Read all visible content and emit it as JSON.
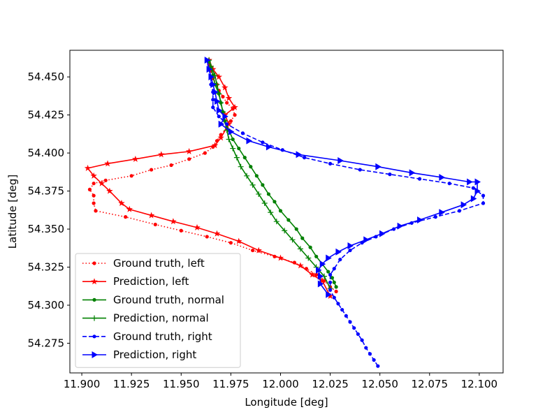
{
  "chart_data": {
    "type": "line",
    "xlabel": "Longitude [deg]",
    "ylabel": "Latitude [deg]",
    "xlim": [
      11.894,
      12.112
    ],
    "ylim": [
      54.2555,
      54.4675
    ],
    "xticks": [
      11.9,
      11.925,
      11.95,
      11.975,
      12.0,
      12.025,
      12.05,
      12.075,
      12.1
    ],
    "xtick_labels": [
      "11.900",
      "11.925",
      "11.950",
      "11.975",
      "12.000",
      "12.025",
      "12.050",
      "12.075",
      "12.100"
    ],
    "yticks": [
      54.275,
      54.3,
      54.325,
      54.35,
      54.375,
      54.4,
      54.425,
      54.45
    ],
    "ytick_labels": [
      "54.275",
      "54.300",
      "54.325",
      "54.350",
      "54.375",
      "54.400",
      "54.425",
      "54.450"
    ],
    "grid": false,
    "legend_position": "lower-left",
    "series": [
      {
        "name": "Ground truth, left",
        "color": "#ff0000",
        "style": "dotted",
        "marker": "dot",
        "points": [
          [
            12.028,
            54.309
          ],
          [
            12.025,
            54.312
          ],
          [
            12.022,
            54.316
          ],
          [
            12.018,
            54.32
          ],
          [
            12.013,
            54.324
          ],
          [
            12.007,
            54.328
          ],
          [
            11.997,
            54.332
          ],
          [
            11.986,
            54.336
          ],
          [
            11.975,
            54.341
          ],
          [
            11.963,
            54.345
          ],
          [
            11.95,
            54.349
          ],
          [
            11.937,
            54.353
          ],
          [
            11.922,
            54.358
          ],
          [
            11.907,
            54.362
          ],
          [
            11.906,
            54.367
          ],
          [
            11.906,
            54.372
          ],
          [
            11.904,
            54.376
          ],
          [
            11.906,
            54.38
          ],
          [
            11.912,
            54.382
          ],
          [
            11.925,
            54.385
          ],
          [
            11.935,
            54.389
          ],
          [
            11.945,
            54.392
          ],
          [
            11.954,
            54.396
          ],
          [
            11.962,
            54.4
          ],
          [
            11.966,
            54.404
          ],
          [
            11.968,
            54.408
          ],
          [
            11.97,
            54.412
          ],
          [
            11.973,
            54.417
          ],
          [
            11.975,
            54.421
          ],
          [
            11.977,
            54.425
          ],
          [
            11.976,
            54.429
          ],
          [
            11.973,
            54.433
          ],
          [
            11.971,
            54.437
          ],
          [
            11.969,
            54.441
          ],
          [
            11.968,
            54.445
          ],
          [
            11.966,
            54.449
          ],
          [
            11.965,
            54.454
          ],
          [
            11.964,
            54.458
          ],
          [
            11.963,
            54.461
          ]
        ]
      },
      {
        "name": "Prediction, left",
        "color": "#ff0000",
        "style": "solid",
        "marker": "star",
        "points": [
          [
            12.025,
            54.306
          ],
          [
            12.021,
            54.316
          ],
          [
            12.016,
            54.32
          ],
          [
            12.01,
            54.326
          ],
          [
            12.0,
            54.331
          ],
          [
            11.989,
            54.336
          ],
          [
            11.979,
            54.342
          ],
          [
            11.968,
            54.347
          ],
          [
            11.958,
            54.351
          ],
          [
            11.946,
            54.355
          ],
          [
            11.935,
            54.359
          ],
          [
            11.924,
            54.363
          ],
          [
            11.92,
            54.367
          ],
          [
            11.914,
            54.375
          ],
          [
            11.91,
            54.38
          ],
          [
            11.906,
            54.385
          ],
          [
            11.903,
            54.39
          ],
          [
            11.913,
            54.393
          ],
          [
            11.927,
            54.396
          ],
          [
            11.94,
            54.399
          ],
          [
            11.954,
            54.401
          ],
          [
            11.967,
            54.405
          ],
          [
            11.97,
            54.41
          ],
          [
            11.974,
            54.419
          ],
          [
            11.972,
            54.425
          ],
          [
            11.977,
            54.43
          ],
          [
            11.974,
            54.436
          ],
          [
            11.972,
            54.443
          ],
          [
            11.969,
            54.45
          ],
          [
            11.966,
            54.455
          ],
          [
            11.964,
            54.461
          ]
        ]
      },
      {
        "name": "Ground truth, normal",
        "color": "#008000",
        "style": "solid",
        "marker": "dot",
        "points": [
          [
            12.028,
            54.312
          ],
          [
            12.027,
            54.315
          ],
          [
            12.026,
            54.318
          ],
          [
            12.024,
            54.322
          ],
          [
            12.021,
            54.327
          ],
          [
            12.018,
            54.332
          ],
          [
            12.015,
            54.338
          ],
          [
            12.011,
            54.344
          ],
          [
            12.008,
            54.35
          ],
          [
            12.004,
            54.356
          ],
          [
            12.0,
            54.362
          ],
          [
            11.997,
            54.368
          ],
          [
            11.994,
            54.373
          ],
          [
            11.991,
            54.379
          ],
          [
            11.988,
            54.385
          ],
          [
            11.985,
            54.391
          ],
          [
            11.982,
            54.397
          ],
          [
            11.979,
            54.403
          ],
          [
            11.976,
            54.409
          ],
          [
            11.974,
            54.415
          ],
          [
            11.972,
            54.421
          ],
          [
            11.971,
            54.427
          ],
          [
            11.97,
            54.433
          ],
          [
            11.969,
            54.439
          ],
          [
            11.967,
            54.445
          ],
          [
            11.966,
            54.451
          ],
          [
            11.965,
            54.456
          ],
          [
            11.964,
            54.46
          ]
        ]
      },
      {
        "name": "Prediction, normal",
        "color": "#008000",
        "style": "solid",
        "marker": "plus",
        "points": [
          [
            12.025,
            54.311
          ],
          [
            12.022,
            54.319
          ],
          [
            12.018,
            54.325
          ],
          [
            12.014,
            54.331
          ],
          [
            12.01,
            54.337
          ],
          [
            12.006,
            54.343
          ],
          [
            12.002,
            54.349
          ],
          [
            11.998,
            54.355
          ],
          [
            11.995,
            54.361
          ],
          [
            11.992,
            54.367
          ],
          [
            11.989,
            54.373
          ],
          [
            11.986,
            54.379
          ],
          [
            11.983,
            54.385
          ],
          [
            11.98,
            54.391
          ],
          [
            11.978,
            54.397
          ],
          [
            11.976,
            54.403
          ],
          [
            11.974,
            54.409
          ],
          [
            11.973,
            54.415
          ],
          [
            11.972,
            54.421
          ],
          [
            11.971,
            54.427
          ],
          [
            11.97,
            54.433
          ],
          [
            11.969,
            54.439
          ],
          [
            11.968,
            54.445
          ],
          [
            11.967,
            54.451
          ],
          [
            11.965,
            54.457
          ],
          [
            11.964,
            54.461
          ]
        ]
      },
      {
        "name": "Ground truth, right",
        "color": "#0000ff",
        "style": "dashed",
        "marker": "dot",
        "points": [
          [
            12.049,
            54.26
          ],
          [
            12.047,
            54.264
          ],
          [
            12.045,
            54.268
          ],
          [
            12.043,
            54.272
          ],
          [
            12.041,
            54.277
          ],
          [
            12.039,
            54.281
          ],
          [
            12.037,
            54.285
          ],
          [
            12.035,
            54.289
          ],
          [
            12.033,
            54.293
          ],
          [
            12.031,
            54.297
          ],
          [
            12.029,
            54.301
          ],
          [
            12.027,
            54.305
          ],
          [
            12.025,
            54.31
          ],
          [
            12.025,
            54.315
          ],
          [
            12.025,
            54.32
          ],
          [
            12.027,
            54.324
          ],
          [
            12.03,
            54.33
          ],
          [
            12.035,
            54.336
          ],
          [
            12.041,
            54.341
          ],
          [
            12.048,
            54.345
          ],
          [
            12.057,
            54.35
          ],
          [
            12.066,
            54.354
          ],
          [
            12.078,
            54.358
          ],
          [
            12.09,
            54.362
          ],
          [
            12.102,
            54.367
          ],
          [
            12.102,
            54.372
          ],
          [
            12.097,
            54.377
          ],
          [
            12.085,
            54.38
          ],
          [
            12.07,
            54.383
          ],
          [
            12.055,
            54.386
          ],
          [
            12.04,
            54.389
          ],
          [
            12.025,
            54.393
          ],
          [
            12.012,
            54.397
          ],
          [
            12.001,
            54.402
          ],
          [
            11.991,
            54.407
          ],
          [
            11.981,
            54.413
          ],
          [
            11.973,
            54.419
          ],
          [
            11.969,
            54.424
          ],
          [
            11.966,
            54.43
          ],
          [
            11.966,
            54.435
          ],
          [
            11.966,
            54.44
          ],
          [
            11.965,
            54.445
          ],
          [
            11.965,
            54.45
          ],
          [
            11.964,
            54.455
          ],
          [
            11.963,
            54.461
          ]
        ]
      },
      {
        "name": "Prediction, right",
        "color": "#0000ff",
        "style": "solid",
        "marker": "triangle",
        "points": [
          [
            12.024,
            54.307
          ],
          [
            12.02,
            54.314
          ],
          [
            12.02,
            54.319
          ],
          [
            12.019,
            54.323
          ],
          [
            12.021,
            54.327
          ],
          [
            12.024,
            54.331
          ],
          [
            12.029,
            54.335
          ],
          [
            12.035,
            54.339
          ],
          [
            12.043,
            54.343
          ],
          [
            12.051,
            54.347
          ],
          [
            12.06,
            54.352
          ],
          [
            12.07,
            54.356
          ],
          [
            12.081,
            54.361
          ],
          [
            12.092,
            54.366
          ],
          [
            12.097,
            54.37
          ],
          [
            12.099,
            54.375
          ],
          [
            12.099,
            54.381
          ],
          [
            12.095,
            54.381
          ],
          [
            12.081,
            54.384
          ],
          [
            12.066,
            54.387
          ],
          [
            12.049,
            54.391
          ],
          [
            12.03,
            54.395
          ],
          [
            12.009,
            54.399
          ],
          [
            11.994,
            54.404
          ],
          [
            11.984,
            54.408
          ],
          [
            11.975,
            54.414
          ],
          [
            11.97,
            54.419
          ],
          [
            11.972,
            54.424
          ],
          [
            11.969,
            54.428
          ],
          [
            11.968,
            54.434
          ],
          [
            11.967,
            54.44
          ],
          [
            11.966,
            54.445
          ],
          [
            11.965,
            54.45
          ],
          [
            11.964,
            54.455
          ],
          [
            11.963,
            54.461
          ]
        ]
      }
    ]
  }
}
